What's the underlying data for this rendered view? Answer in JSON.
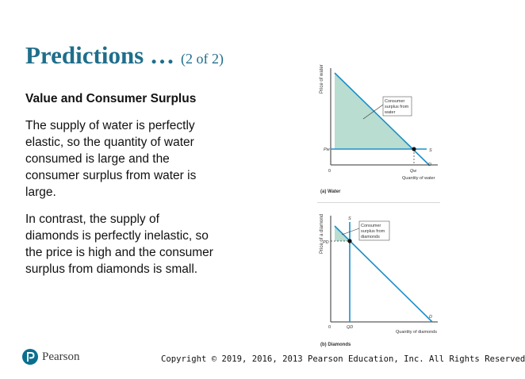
{
  "slide": {
    "title": "Predictions …",
    "title_suffix": "(2 of 2)",
    "heading": "Value and Consumer Surplus",
    "paragraphs": [
      "The supply of water is perfectly elastic, so the quantity of water consumed is large and the consumer surplus from water is large.",
      "In contrast, the supply of diamonds is perfectly inelastic, so the price is high and the consumer surplus from diamonds is small."
    ]
  },
  "charts": {
    "water": {
      "ylabel": "Price of water",
      "xlabel": "Quantity of water",
      "caption": "(a) Water",
      "origin": "0",
      "price_label": "Pw",
      "quantity_label": "Qw",
      "supply_label": "S",
      "demand_label": "D",
      "annotation": [
        "Consumer",
        "surplus from",
        "water"
      ]
    },
    "diamonds": {
      "ylabel": "Price of a diamond",
      "xlabel": "Quantity of diamonds",
      "caption": "(b) Diamonds",
      "origin": "0",
      "price_label": "PD",
      "quantity_label": "QD",
      "supply_label": "S",
      "demand_label": "D",
      "annotation": [
        "Consumer",
        "surplus from",
        "diamonds"
      ]
    }
  },
  "colors": {
    "title": "#1f6e8c",
    "curve": "#1a8fc8",
    "surplus_fill": "#b9ddd0"
  },
  "footer": {
    "logo_text": "Pearson",
    "logo_icon": "pearson-p-icon",
    "copyright": "Copyright © 2019, 2016, 2013 Pearson Education, Inc. All Rights Reserved"
  }
}
